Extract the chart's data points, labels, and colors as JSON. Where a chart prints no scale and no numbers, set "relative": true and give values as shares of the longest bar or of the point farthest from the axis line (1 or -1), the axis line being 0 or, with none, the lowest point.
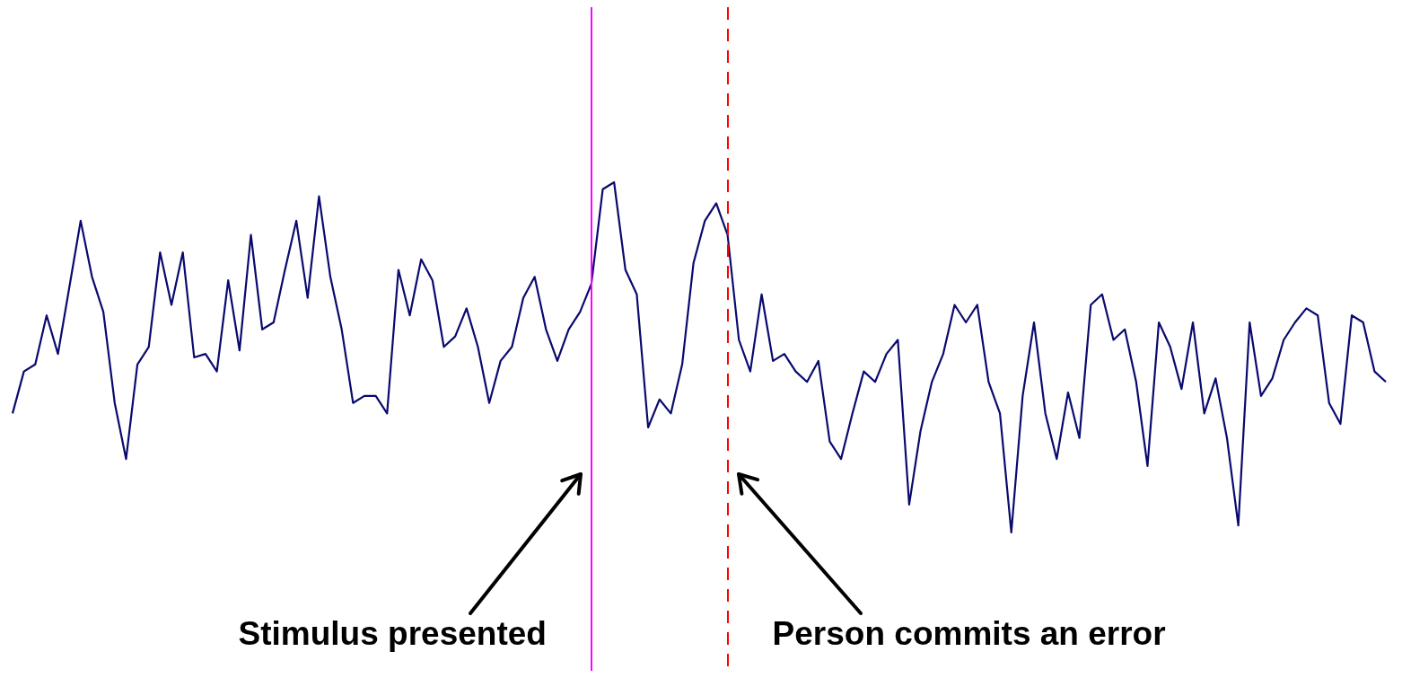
{
  "chart_data": {
    "type": "line",
    "relative": true,
    "categories": [
      null,
      null,
      null,
      null,
      null,
      null,
      null,
      null,
      null,
      null,
      null,
      null,
      null,
      null,
      null,
      null,
      null,
      null,
      null,
      null,
      null,
      null,
      null,
      null,
      null,
      null,
      null,
      null,
      null,
      null,
      null,
      null,
      null,
      null,
      null,
      null,
      null,
      null,
      null,
      null,
      null,
      null,
      null,
      null,
      null,
      null,
      null,
      null,
      null,
      null,
      null,
      null,
      null,
      null,
      null,
      null,
      null,
      null,
      null,
      null,
      null,
      null,
      null,
      null,
      null,
      null,
      null,
      null,
      null,
      null,
      null,
      null,
      null,
      null,
      null,
      null,
      null,
      null,
      null,
      null,
      null,
      null,
      null,
      null,
      null,
      null,
      null,
      null,
      null,
      null,
      null,
      null,
      null,
      null,
      null,
      null,
      null,
      null,
      null,
      null,
      null,
      null,
      null,
      null,
      null,
      null,
      null,
      null,
      null,
      null,
      null,
      null,
      null,
      null,
      null,
      null,
      null,
      null,
      null,
      null,
      null,
      null
    ],
    "series": [
      {
        "color": "#0a0a6e",
        "values": [
          0.34,
          0.46,
          0.48,
          0.62,
          0.51,
          0.7,
          0.89,
          0.73,
          0.63,
          0.37,
          0.21,
          0.48,
          0.53,
          0.8,
          0.65,
          0.8,
          0.5,
          0.51,
          0.46,
          0.72,
          0.52,
          0.85,
          0.58,
          0.6,
          0.75,
          0.89,
          0.67,
          0.96,
          0.73,
          0.58,
          0.37,
          0.39,
          0.39,
          0.34,
          0.75,
          0.62,
          0.78,
          0.72,
          0.53,
          0.56,
          0.64,
          0.53,
          0.37,
          0.49,
          0.53,
          0.67,
          0.73,
          0.58,
          0.49,
          0.58,
          0.63,
          0.71,
          0.98,
          1,
          0.75,
          0.68,
          0.3,
          0.38,
          0.34,
          0.48,
          0.77,
          0.89,
          0.94,
          0.85,
          0.55,
          0.46,
          0.68,
          0.49,
          0.51,
          0.46,
          0.43,
          0.49,
          0.26,
          0.21,
          0.34,
          0.46,
          0.43,
          0.51,
          0.55,
          0.08,
          0.29,
          0.43,
          0.51,
          0.65,
          0.6,
          0.65,
          0.43,
          0.34,
          0,
          0.39,
          0.6,
          0.34,
          0.21,
          0.4,
          0.27,
          0.65,
          0.68,
          0.55,
          0.58,
          0.43,
          0.19,
          0.6,
          0.53,
          0.41,
          0.6,
          0.34,
          0.44,
          0.27,
          0.02,
          0.6,
          0.39,
          0.44,
          0.55,
          0.6,
          0.64,
          0.62,
          0.37,
          0.31,
          0.62,
          0.6,
          0.46,
          0.43
        ]
      }
    ],
    "annotations": [
      "Stimulus presented",
      "Person commits an error"
    ],
    "legend": false,
    "grid": false,
    "marker": "none"
  }
}
